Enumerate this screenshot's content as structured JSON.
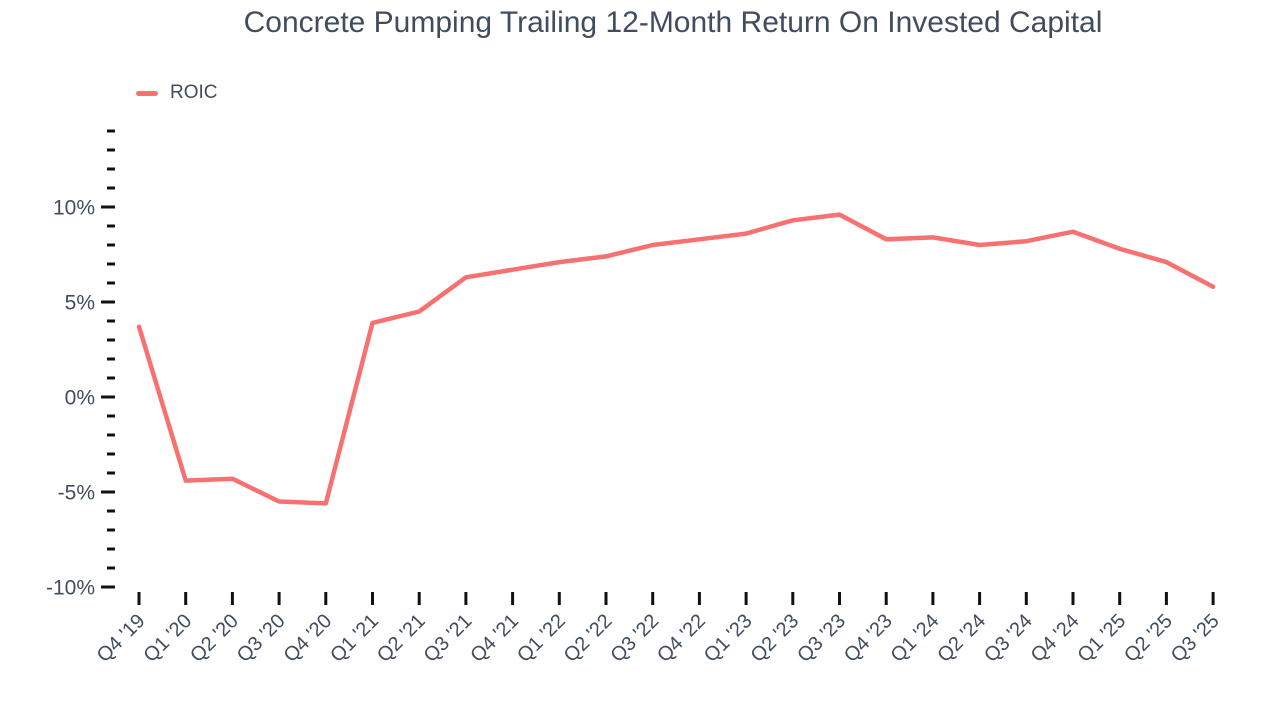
{
  "page": {
    "background": "#FFFFFF"
  },
  "chart_data": {
    "type": "line",
    "title": "Concrete Pumping Trailing 12-Month Return On Invested Capital",
    "categories": [
      "Q4 '19",
      "Q1 '20",
      "Q2 '20",
      "Q3 '20",
      "Q4 '20",
      "Q1 '21",
      "Q2 '21",
      "Q3 '21",
      "Q4 '21",
      "Q1 '22",
      "Q2 '22",
      "Q3 '22",
      "Q4 '22",
      "Q1 '23",
      "Q2 '23",
      "Q3 '23",
      "Q4 '23",
      "Q1 '24",
      "Q2 '24",
      "Q3 '24",
      "Q4 '24",
      "Q1 '25",
      "Q2 '25",
      "Q3 '25"
    ],
    "series": [
      {
        "name": "ROIC",
        "color": "#F87171",
        "values": [
          3.7,
          -4.4,
          -4.3,
          -5.5,
          -5.6,
          3.9,
          4.5,
          6.3,
          6.7,
          7.1,
          7.4,
          8.0,
          8.3,
          8.6,
          9.3,
          9.6,
          8.3,
          8.4,
          8.0,
          8.2,
          8.7,
          7.8,
          7.1,
          5.8
        ]
      }
    ],
    "xlabel": "",
    "ylabel": "",
    "y_unit": "%",
    "ylim": [
      -10,
      14
    ],
    "y_tick_step": 1,
    "y_major_tick_step": 5,
    "y_major_tick_labels": [
      "-10%",
      "-5%",
      "0%",
      "5%",
      "10%"
    ],
    "x_tick_label_rotation_deg": -45,
    "grid": false,
    "legend_position": "top-left"
  },
  "legend": {
    "items": [
      {
        "label": "ROIC",
        "color": "#F87171"
      }
    ]
  },
  "styles": {
    "line_color": "#F87171",
    "text_color": "#414D5F",
    "tick_color": "#111111",
    "background_color": "#FFFFFF"
  }
}
